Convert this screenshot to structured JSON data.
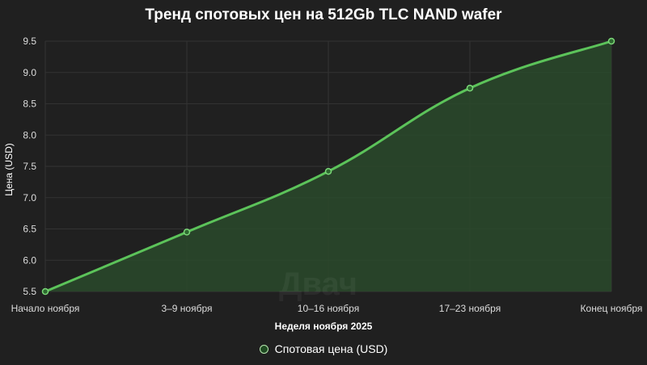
{
  "chart_data": {
    "type": "area",
    "title": "Тренд спотовых цен на 512Gb TLC NAND wafer",
    "xlabel": "Неделя ноября 2025",
    "ylabel": "Цена (USD)",
    "categories": [
      "Начало ноября",
      "3–9 ноября",
      "10–16 ноября",
      "17–23 ноября",
      "Конец ноября"
    ],
    "series": [
      {
        "name": "Спотовая цена (USD)",
        "values": [
          5.5,
          6.45,
          7.42,
          8.75,
          9.5
        ]
      }
    ],
    "ylim": [
      5.5,
      9.5
    ],
    "yticks": [
      "5.5",
      "6.0",
      "6.5",
      "7.0",
      "7.5",
      "8.0",
      "8.5",
      "9.0",
      "9.5"
    ],
    "grid": true,
    "legend_position": "bottom",
    "colors": {
      "line": "#5cc35a",
      "fill": "#2a4a2c",
      "background": "#202020",
      "grid": "#333333"
    }
  },
  "legend": {
    "label": "Спотовая цена (USD)"
  },
  "watermark": "Двач"
}
